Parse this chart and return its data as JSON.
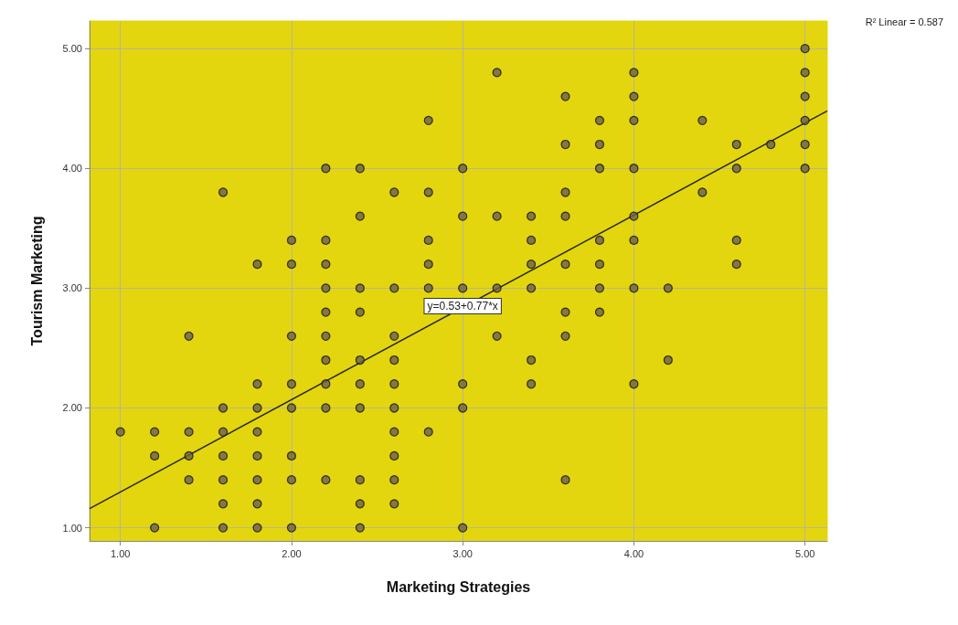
{
  "chart_data": {
    "type": "scatter",
    "xlabel": "Marketing Strategies",
    "ylabel": "Tourism Marketing",
    "xlim": [
      0.82,
      5.13
    ],
    "ylim": [
      0.89,
      5.23
    ],
    "xticks": [
      {
        "value": 1,
        "label": "1.00"
      },
      {
        "value": 2,
        "label": "2.00"
      },
      {
        "value": 3,
        "label": "3.00"
      },
      {
        "value": 4,
        "label": "4.00"
      },
      {
        "value": 5,
        "label": "5.00"
      }
    ],
    "yticks": [
      {
        "value": 1,
        "label": "1.00"
      },
      {
        "value": 2,
        "label": "2.00"
      },
      {
        "value": 3,
        "label": "3.00"
      },
      {
        "value": 4,
        "label": "4.00"
      },
      {
        "value": 5,
        "label": "5.00"
      }
    ],
    "grid": true,
    "line_style": "solid",
    "annotations": [
      {
        "text": "y=0.53+0.77*x",
        "x": 3.0,
        "y": 2.85
      },
      "R² Linear = 0.587"
    ],
    "series": [
      {
        "marker": "circle",
        "color": "#6b6048",
        "x": [
          1.0,
          1.2,
          1.2,
          1.2,
          1.4,
          1.4,
          1.4,
          1.4,
          1.6,
          1.6,
          1.6,
          1.6,
          1.6,
          1.6,
          1.6,
          1.8,
          1.8,
          1.8,
          1.8,
          1.8,
          1.8,
          1.8,
          1.8,
          2.0,
          2.0,
          2.0,
          2.0,
          2.0,
          2.0,
          2.0,
          2.0,
          2.2,
          2.2,
          2.2,
          2.2,
          2.2,
          2.2,
          2.2,
          2.2,
          2.2,
          2.2,
          2.4,
          2.4,
          2.4,
          2.4,
          2.4,
          2.4,
          2.4,
          2.4,
          2.4,
          2.4,
          2.6,
          2.6,
          2.6,
          2.6,
          2.6,
          2.6,
          2.6,
          2.6,
          2.6,
          2.6,
          2.8,
          2.8,
          2.8,
          2.8,
          2.8,
          2.8,
          3.0,
          3.0,
          3.0,
          3.0,
          3.0,
          3.0,
          3.2,
          3.2,
          3.2,
          3.2,
          3.4,
          3.4,
          3.4,
          3.4,
          3.4,
          3.4,
          3.6,
          3.6,
          3.6,
          3.6,
          3.6,
          3.6,
          3.6,
          3.6,
          3.8,
          3.8,
          3.8,
          3.8,
          3.8,
          3.8,
          3.8,
          4.0,
          4.0,
          4.0,
          4.0,
          4.0,
          4.0,
          4.0,
          4.0,
          4.2,
          4.2,
          4.4,
          4.4,
          4.6,
          4.6,
          4.6,
          4.6,
          4.8,
          5.0,
          5.0,
          5.0,
          5.0,
          5.0,
          5.0
        ],
        "values": [
          1.8,
          1.8,
          1.6,
          1.0,
          2.6,
          1.8,
          1.6,
          1.4,
          3.8,
          2.0,
          1.8,
          1.6,
          1.4,
          1.2,
          1.0,
          3.2,
          2.2,
          2.0,
          1.8,
          1.6,
          1.4,
          1.2,
          1.0,
          3.4,
          3.2,
          2.6,
          2.2,
          2.0,
          1.6,
          1.4,
          1.0,
          4.0,
          3.4,
          3.2,
          3.0,
          2.8,
          2.6,
          2.4,
          2.2,
          2.0,
          1.4,
          4.0,
          3.6,
          3.0,
          2.8,
          2.4,
          2.2,
          2.0,
          1.4,
          1.2,
          1.0,
          3.8,
          3.0,
          2.6,
          2.4,
          2.2,
          2.0,
          1.8,
          1.6,
          1.4,
          1.2,
          4.4,
          3.8,
          3.4,
          3.2,
          3.0,
          1.8,
          4.0,
          3.6,
          3.0,
          2.2,
          2.0,
          1.0,
          4.8,
          3.6,
          3.0,
          2.6,
          3.6,
          3.4,
          3.2,
          3.0,
          2.4,
          2.2,
          4.6,
          4.2,
          3.8,
          3.6,
          3.2,
          2.8,
          2.6,
          1.4,
          4.4,
          4.2,
          4.0,
          3.4,
          3.2,
          3.0,
          2.8,
          4.8,
          4.6,
          4.4,
          4.0,
          3.6,
          3.4,
          3.0,
          2.2,
          3.0,
          2.4,
          4.4,
          3.8,
          4.2,
          4.0,
          3.4,
          3.2,
          4.2,
          5.0,
          4.8,
          4.6,
          4.4,
          4.2,
          4.0
        ]
      },
      {
        "type": "line",
        "marker": "none",
        "color": "#2a2a1a",
        "x": [
          0.82,
          5.13
        ],
        "values": [
          1.16,
          4.48
        ]
      }
    ]
  }
}
